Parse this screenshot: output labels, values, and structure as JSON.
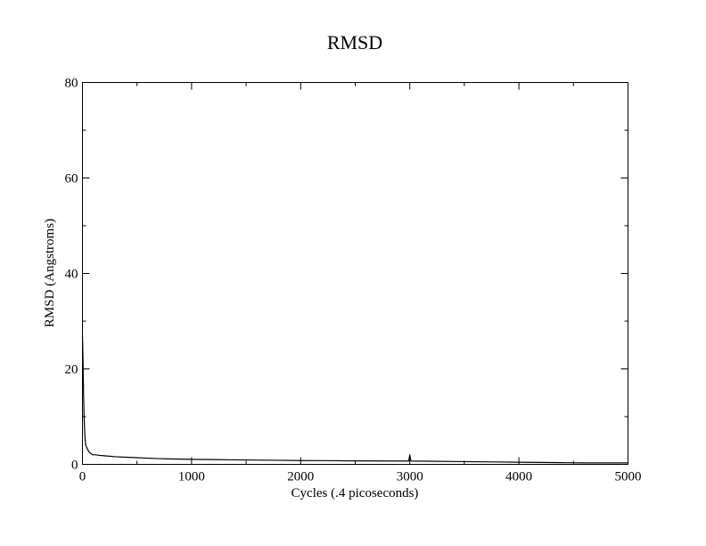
{
  "chart_data": {
    "type": "line",
    "title": "RMSD",
    "xlabel": "Cycles (.4 picoseconds)",
    "ylabel": "RMSD (Angstroms)",
    "xlim": [
      0,
      5000
    ],
    "ylim": [
      0,
      80
    ],
    "x_ticks": [
      0,
      1000,
      2000,
      3000,
      4000,
      5000
    ],
    "y_ticks": [
      0,
      20,
      40,
      60,
      80
    ],
    "x_minor_step": 500,
    "y_minor_step": 10,
    "grid": false,
    "legend": "none",
    "line_color": "#000000",
    "series": [
      {
        "x": [
          0,
          5,
          10,
          15,
          20,
          25,
          30,
          40,
          50,
          60,
          70,
          80,
          100,
          120,
          150,
          200,
          250,
          300,
          400,
          500,
          600,
          700,
          800,
          900,
          1000,
          1200,
          1400,
          1600,
          1800,
          2000,
          2200,
          2400,
          2600,
          2800,
          2990,
          3000,
          3010,
          3200,
          3400,
          3600,
          3800,
          4000,
          4200,
          4400,
          4600,
          4800,
          5000
        ],
        "values": [
          27,
          22,
          15,
          10,
          7,
          5,
          4,
          3.5,
          3,
          2.6,
          2.4,
          2.2,
          2,
          2,
          1.9,
          1.8,
          1.7,
          1.6,
          1.5,
          1.4,
          1.3,
          1.2,
          1.15,
          1.1,
          1.05,
          1,
          0.95,
          0.9,
          0.85,
          0.8,
          0.78,
          0.75,
          0.72,
          0.7,
          0.7,
          2,
          0.7,
          0.65,
          0.6,
          0.55,
          0.5,
          0.45,
          0.4,
          0.35,
          0.3,
          0.3,
          0.3
        ]
      }
    ]
  }
}
